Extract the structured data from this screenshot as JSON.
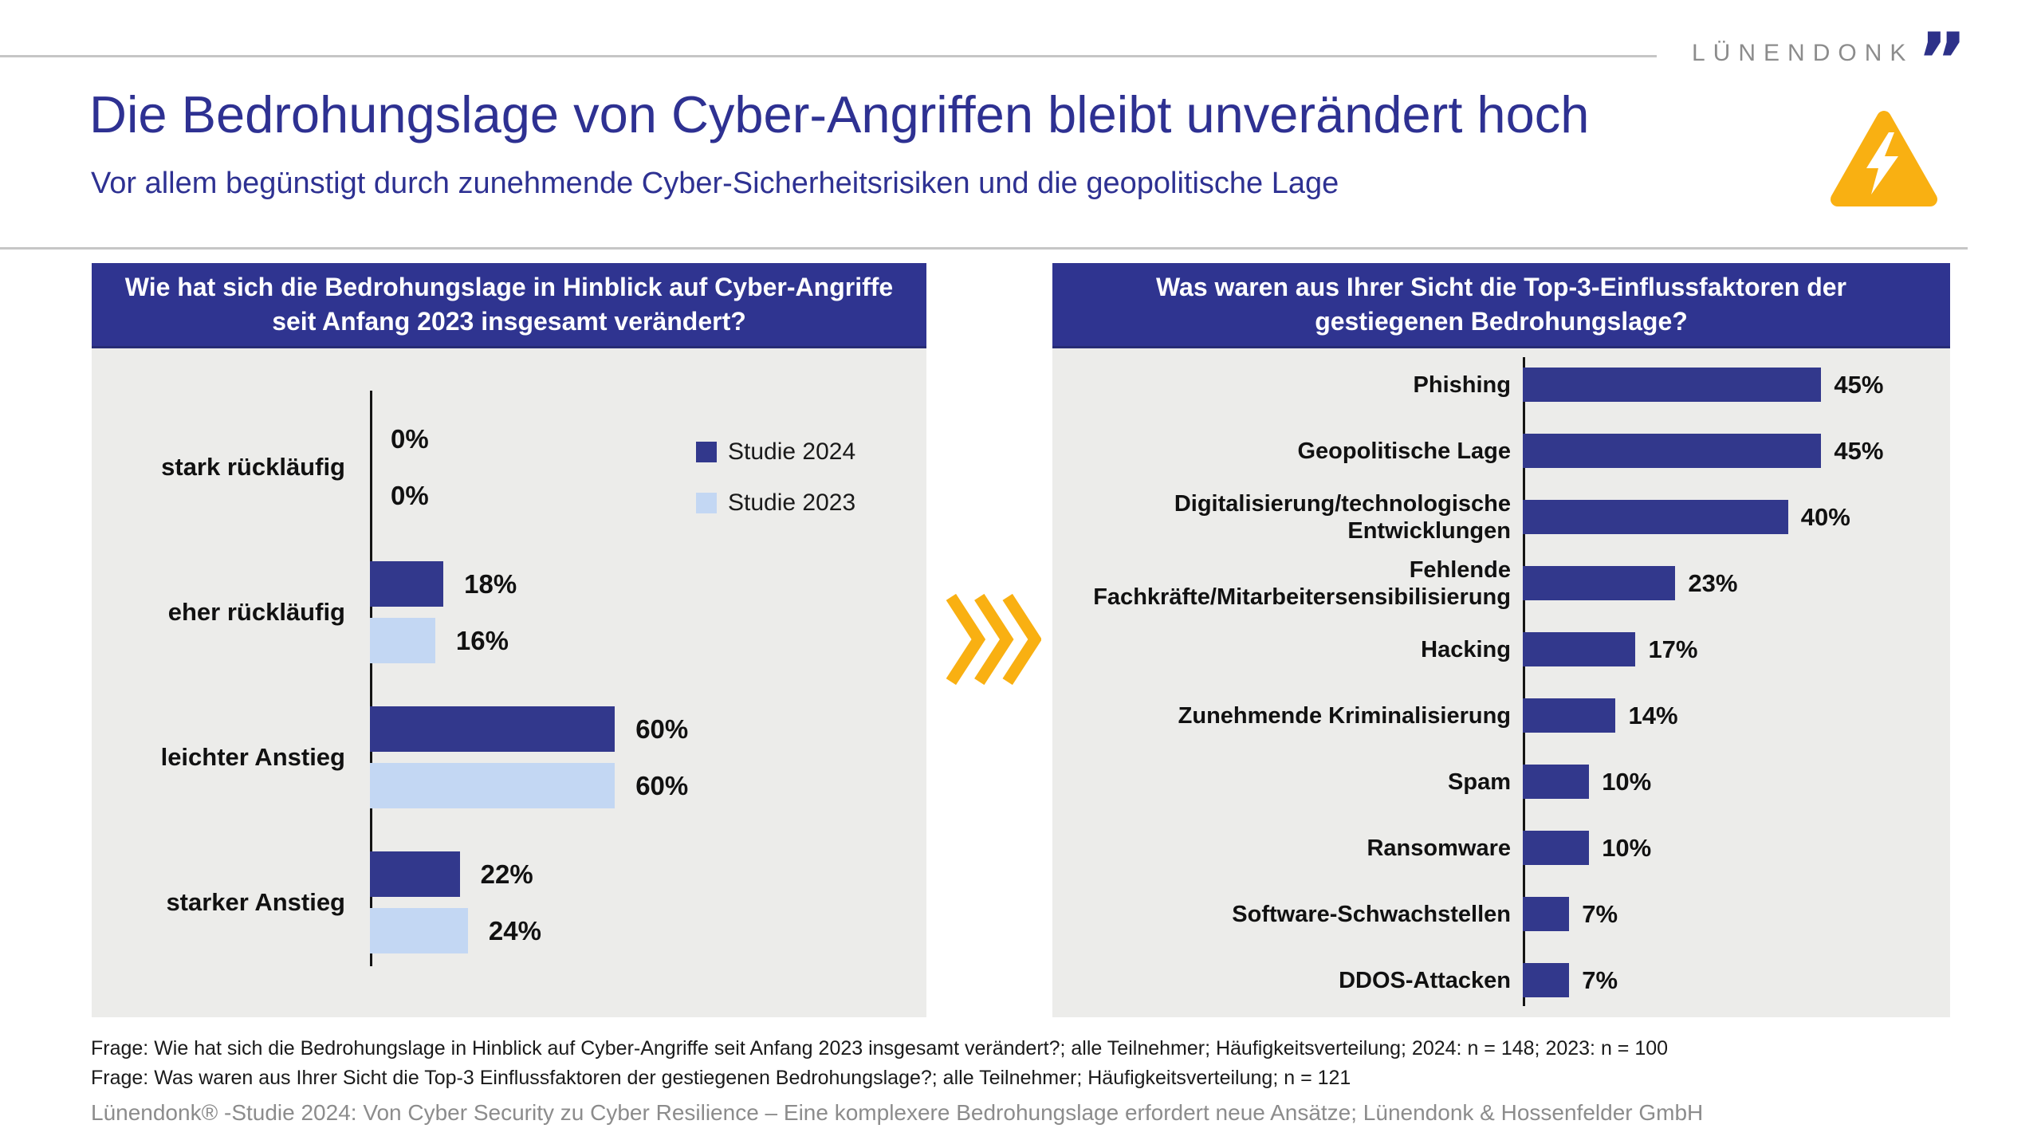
{
  "logo": {
    "text": "LÜNENDONK",
    "quote_glyph": "”"
  },
  "header": {
    "title": "Die Bedrohungslage von Cyber-Angriffen bleibt unverändert hoch",
    "subtitle": "Vor allem begünstigt durch zunehmende Cyber-Sicherheitsrisiken und die geopolitische Lage"
  },
  "colors": {
    "title_blue": "#2E3192",
    "header_blue": "#2F3490",
    "bar_dark_blue": "#32388C",
    "bar_light_blue": "#C3D7F3",
    "panel_gray": "#ECECEA",
    "warning_orange": "#F9B012",
    "chevron_orange": "#F9B012",
    "logo_gray": "#8C8C8C",
    "footnote_black": "#1A1A1A",
    "source_gray": "#8C8C8C"
  },
  "chart_data": [
    {
      "type": "bar",
      "orientation": "horizontal",
      "title": "Wie hat sich die Bedrohungslage in Hinblick auf Cyber-Angriffe seit Anfang 2023 insgesamt verändert?",
      "categories": [
        "stark rückläufig",
        "eher rückläufig",
        "leichter Anstieg",
        "starker Anstieg"
      ],
      "series": [
        {
          "name": "Studie 2024",
          "color": "#32388C",
          "values": [
            0,
            18,
            60,
            22
          ],
          "value_labels": [
            "0%",
            "18%",
            "60%",
            "22%"
          ]
        },
        {
          "name": "Studie 2023",
          "color": "#C3D7F3",
          "values": [
            0,
            16,
            60,
            24
          ],
          "value_labels": [
            "0%",
            "16%",
            "60%",
            "24%"
          ]
        }
      ],
      "xlim": [
        0,
        100
      ],
      "grid": false,
      "legend_position": "right"
    },
    {
      "type": "bar",
      "orientation": "horizontal",
      "title": "Was waren aus Ihrer Sicht die Top-3-Einflussfaktoren der gestiegenen Bedrohungslage?",
      "categories": [
        "Phishing",
        "Geopolitische Lage",
        "Digitalisierung/technologische\nEntwicklungen",
        "Fehlende\nFachkräfte/Mitarbeitersensibilisierung",
        "Hacking",
        "Zunehmende Kriminalisierung",
        "Spam",
        "Ransomware",
        "Software-Schwachstellen",
        "DDOS-Attacken"
      ],
      "values": [
        45,
        45,
        40,
        23,
        17,
        14,
        10,
        10,
        7,
        7
      ],
      "value_labels": [
        "45%",
        "45%",
        "40%",
        "23%",
        "17%",
        "14%",
        "10%",
        "10%",
        "7%",
        "7%"
      ],
      "bar_color": "#32388C",
      "xlim": [
        0,
        100
      ],
      "grid": false
    }
  ],
  "footnotes": {
    "line1": "Frage: Wie hat sich die Bedrohungslage in Hinblick auf Cyber-Angriffe seit Anfang 2023 insgesamt verändert?; alle Teilnehmer; Häufigkeitsverteilung; 2024: n = 148; 2023: n = 100",
    "line2": "Frage: Was waren aus Ihrer Sicht die Top-3 Einflussfaktoren der gestiegenen Bedrohungslage?; alle Teilnehmer; Häufigkeitsverteilung; n = 121",
    "source": "Lünendonk® -Studie 2024: Von Cyber Security zu Cyber Resilience – Eine komplexere Bedrohungslage erfordert neue Ansätze; Lünendonk & Hossenfelder GmbH"
  }
}
